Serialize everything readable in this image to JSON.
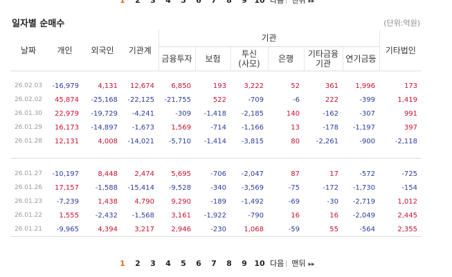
{
  "pager": {
    "pages": [
      "1",
      "2",
      "3",
      "4",
      "5",
      "6",
      "7",
      "8",
      "9",
      "10"
    ],
    "next_label": "다음",
    "last_label": "맨뒤",
    "last_arrow": "▸▸"
  },
  "section": {
    "title": "일자별 순매수",
    "unit": "(단위:억원)"
  },
  "table": {
    "headers": {
      "date": "날짜",
      "individual": "개인",
      "foreign": "외국인",
      "institution_total": "기관계",
      "institution_group": "기관",
      "financial_investment": "금융투자",
      "insurance": "보험",
      "trust_line1": "투신",
      "trust_line2": "(사모)",
      "bank": "은행",
      "other_finance_line1": "기타금융",
      "other_finance_line2": "기관",
      "pension": "연기금등",
      "other_corp": "기타법인"
    },
    "group1": [
      [
        "26.02.03",
        "-16,979",
        "4,131",
        "12,674",
        "6,850",
        "193",
        "3,222",
        "52",
        "361",
        "1,996",
        "173"
      ],
      [
        "26.02.02",
        "45,874",
        "-25,168",
        "-22,125",
        "-21,755",
        "522",
        "-709",
        "-6",
        "222",
        "-399",
        "1,419"
      ],
      [
        "26.01.30",
        "22,979",
        "-19,729",
        "-4,241",
        "-309",
        "-1,418",
        "-2,185",
        "140",
        "-162",
        "-307",
        "991"
      ],
      [
        "26.01.29",
        "16,173",
        "-14,897",
        "-1,673",
        "1,569",
        "-714",
        "-1,166",
        "13",
        "-178",
        "-1,197",
        "397"
      ],
      [
        "26.01.28",
        "12,131",
        "4,008",
        "-14,021",
        "-5,710",
        "-1,414",
        "-3,815",
        "80",
        "-2,261",
        "-900",
        "-2,118"
      ]
    ],
    "group2": [
      [
        "26.01.27",
        "-10,197",
        "8,448",
        "2,474",
        "5,695",
        "-706",
        "-2,047",
        "87",
        "17",
        "-572",
        "-725"
      ],
      [
        "26.01.26",
        "17,157",
        "-1,588",
        "-15,414",
        "-9,528",
        "-340",
        "-3,569",
        "-75",
        "-172",
        "-1,730",
        "-154"
      ],
      [
        "26.01.23",
        "-7,239",
        "1,438",
        "4,790",
        "9,290",
        "-189",
        "-1,492",
        "-69",
        "-30",
        "-2,719",
        "1,012"
      ],
      [
        "26.01.22",
        "1,555",
        "-2,432",
        "-1,568",
        "3,161",
        "-1,922",
        "-790",
        "16",
        "16",
        "-2,049",
        "2,445"
      ],
      [
        "26.01.21",
        "-9,965",
        "4,394",
        "3,217",
        "2,946",
        "-230",
        "1,068",
        "-59",
        "55",
        "-564",
        "2,355"
      ]
    ]
  }
}
